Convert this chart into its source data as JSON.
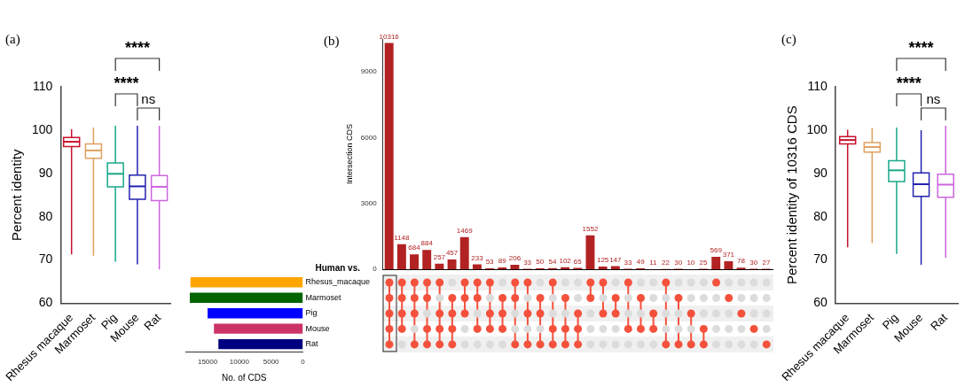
{
  "chart_data": [
    {
      "type": "box",
      "title": "(a)",
      "ylabel": "Percent identity",
      "categories": [
        "Rhesus macaque",
        "Marmoset",
        "Pig",
        "Mouse",
        "Rat"
      ],
      "colors": [
        "#c8102e",
        "#e0a060",
        "#1aa88a",
        "#2323b0",
        "#cc66dd"
      ],
      "boxes": [
        {
          "low": 71.3,
          "q1": 96.2,
          "median": 97.3,
          "q3": 98.3,
          "high": 100.2
        },
        {
          "low": 71,
          "q1": 93.5,
          "median": 95.3,
          "q3": 96.8,
          "high": 100.6
        },
        {
          "low": 69.6,
          "q1": 86.9,
          "median": 89.9,
          "q3": 92.4,
          "high": 101
        },
        {
          "low": 69,
          "q1": 84,
          "median": 87,
          "q3": 89.6,
          "high": 101
        },
        {
          "low": 67.8,
          "q1": 83.7,
          "median": 86.9,
          "q3": 89.5,
          "high": 101
        }
      ],
      "ylim": [
        60,
        110
      ],
      "yticks": [
        60,
        70,
        80,
        90,
        100,
        110
      ],
      "annotations": [
        "****",
        "****",
        "ns"
      ],
      "legend": false,
      "grid": false
    },
    {
      "type": "bar",
      "title": "(b)",
      "ylabel": "Intersection CDS",
      "categories": [
        null,
        null,
        null,
        null,
        null,
        null,
        null,
        null,
        null,
        null,
        null,
        null,
        null,
        null,
        null,
        null,
        null,
        null,
        null,
        null,
        null,
        null,
        null,
        null,
        null,
        null,
        null,
        null,
        null,
        null,
        null
      ],
      "values": [
        10316,
        1148,
        684,
        884,
        257,
        457,
        1469,
        233,
        53,
        89,
        206,
        33,
        50,
        54,
        102,
        65,
        1552,
        125,
        147,
        33,
        49,
        11,
        22,
        30,
        10,
        25,
        569,
        371,
        78,
        30,
        27
      ],
      "color": "#b22222",
      "ylim": [
        0,
        10500
      ],
      "yticks": [
        0,
        3000,
        6000,
        9000
      ],
      "data_labels": true,
      "legend": false,
      "grid": false
    },
    {
      "type": "bar",
      "orientation": "horizontal",
      "xlabel": "No. of CDS",
      "categories": [
        "Rhesus_macaque",
        "Marmoset",
        "Pig",
        "Mouse",
        "Rat"
      ],
      "values": [
        17700,
        17800,
        15000,
        14000,
        13300
      ],
      "colors": [
        "#ffa500",
        "#006400",
        "#0000ff",
        "#cc3366",
        "#000080"
      ],
      "xlim": [
        18500,
        0
      ],
      "xticks": [
        15000,
        10000,
        5000,
        0
      ],
      "annotations": [
        "Human vs."
      ],
      "legend": false,
      "grid": false
    },
    {
      "type": "box",
      "title": "(c)",
      "ylabel": "Percent identity of 10316 CDS",
      "categories": [
        "Rhesus macaque",
        "Marmoset",
        "Pig",
        "Mouse",
        "Rat"
      ],
      "colors": [
        "#c8102e",
        "#e0a060",
        "#1aa88a",
        "#2323b0",
        "#cc66dd"
      ],
      "boxes": [
        {
          "low": 72.9,
          "q1": 96.8,
          "median": 97.7,
          "q3": 98.5,
          "high": 100.1
        },
        {
          "low": 73.9,
          "q1": 94.9,
          "median": 96.1,
          "q3": 97.1,
          "high": 100.5
        },
        {
          "low": 71.4,
          "q1": 88.1,
          "median": 90.7,
          "q3": 92.9,
          "high": 100.6
        },
        {
          "low": 68.9,
          "q1": 84.7,
          "median": 87.5,
          "q3": 90.1,
          "high": 100
        },
        {
          "low": 70.5,
          "q1": 84.5,
          "median": 87.4,
          "q3": 89.8,
          "high": 101
        }
      ],
      "ylim": [
        60,
        110
      ],
      "yticks": [
        60,
        70,
        80,
        90,
        100,
        110
      ],
      "annotations": [
        "****",
        "****",
        "ns"
      ],
      "legend": false,
      "grid": false
    }
  ]
}
